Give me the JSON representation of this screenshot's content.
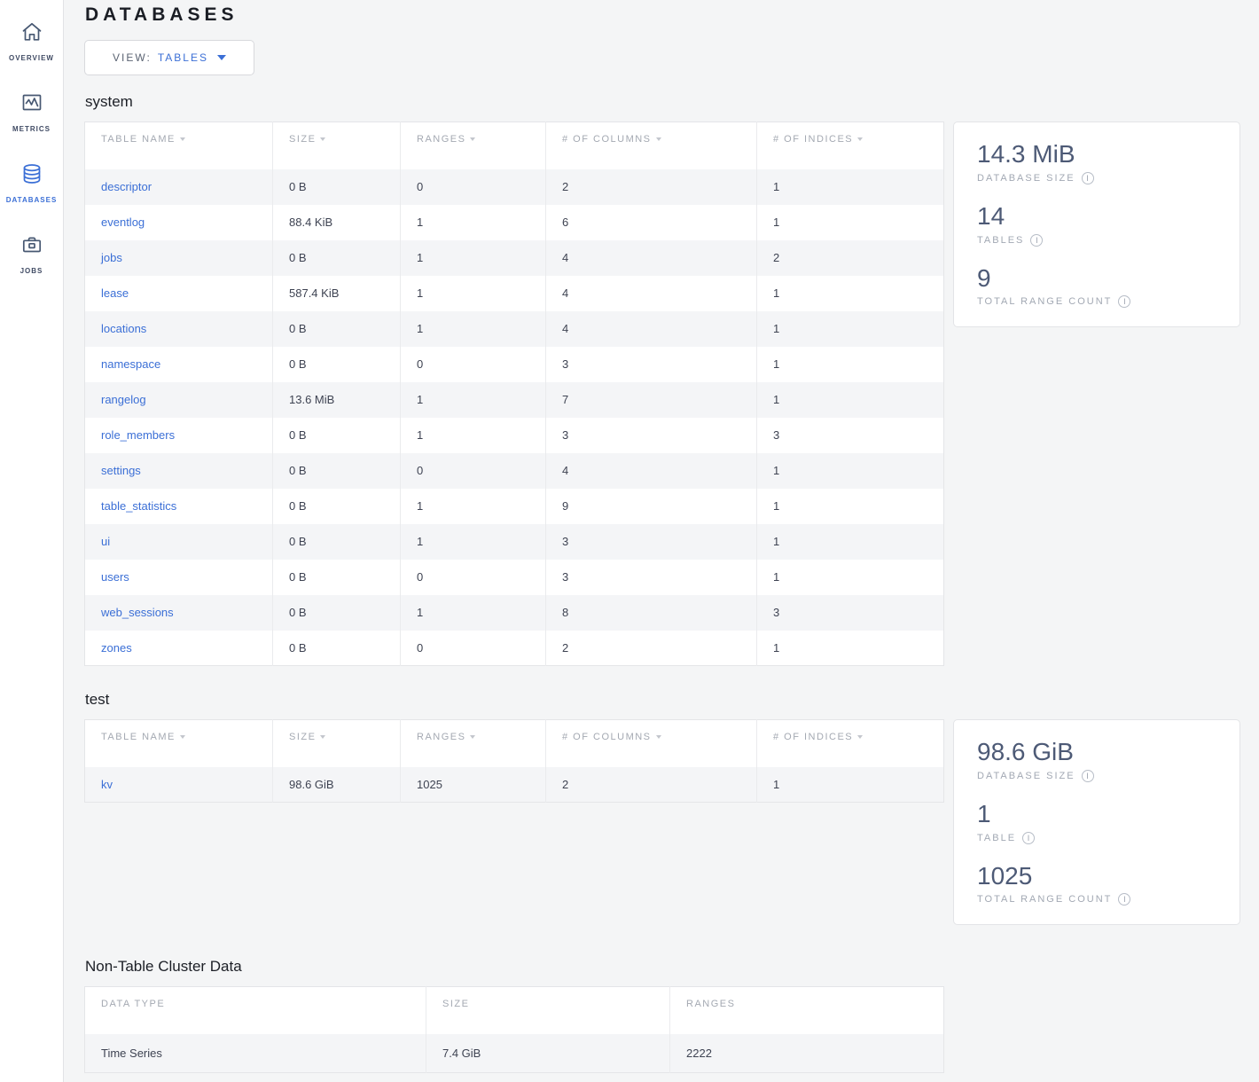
{
  "colors": {
    "accent_blue": "#3b6fd6",
    "stat_slate": "#4d5a76",
    "page_bg": "#f4f5f6"
  },
  "sidebar": {
    "items": [
      {
        "label": "OVERVIEW",
        "icon": "home-icon",
        "active": false
      },
      {
        "label": "METRICS",
        "icon": "metrics-icon",
        "active": false
      },
      {
        "label": "DATABASES",
        "icon": "database-icon",
        "active": true
      },
      {
        "label": "JOBS",
        "icon": "briefcase-icon",
        "active": false
      }
    ]
  },
  "header": {
    "title": "DATABASES"
  },
  "view_dropdown": {
    "label": "VIEW:",
    "value": "TABLES"
  },
  "databases": [
    {
      "name": "system",
      "table": {
        "columns": [
          "TABLE NAME",
          "SIZE",
          "RANGES",
          "# OF COLUMNS",
          "# OF INDICES"
        ],
        "rows": [
          [
            "descriptor",
            "0 B",
            "0",
            "2",
            "1"
          ],
          [
            "eventlog",
            "88.4 KiB",
            "1",
            "6",
            "1"
          ],
          [
            "jobs",
            "0 B",
            "1",
            "4",
            "2"
          ],
          [
            "lease",
            "587.4 KiB",
            "1",
            "4",
            "1"
          ],
          [
            "locations",
            "0 B",
            "1",
            "4",
            "1"
          ],
          [
            "namespace",
            "0 B",
            "0",
            "3",
            "1"
          ],
          [
            "rangelog",
            "13.6 MiB",
            "1",
            "7",
            "1"
          ],
          [
            "role_members",
            "0 B",
            "1",
            "3",
            "3"
          ],
          [
            "settings",
            "0 B",
            "0",
            "4",
            "1"
          ],
          [
            "table_statistics",
            "0 B",
            "1",
            "9",
            "1"
          ],
          [
            "ui",
            "0 B",
            "1",
            "3",
            "1"
          ],
          [
            "users",
            "0 B",
            "0",
            "3",
            "1"
          ],
          [
            "web_sessions",
            "0 B",
            "1",
            "8",
            "3"
          ],
          [
            "zones",
            "0 B",
            "0",
            "2",
            "1"
          ]
        ]
      },
      "summary": [
        {
          "value": "14.3 MiB",
          "label": "DATABASE SIZE"
        },
        {
          "value": "14",
          "label": "TABLES"
        },
        {
          "value": "9",
          "label": "TOTAL RANGE COUNT"
        }
      ]
    },
    {
      "name": "test",
      "table": {
        "columns": [
          "TABLE NAME",
          "SIZE",
          "RANGES",
          "# OF COLUMNS",
          "# OF INDICES"
        ],
        "rows": [
          [
            "kv",
            "98.6 GiB",
            "1025",
            "2",
            "1"
          ]
        ]
      },
      "summary": [
        {
          "value": "98.6 GiB",
          "label": "DATABASE SIZE"
        },
        {
          "value": "1",
          "label": "TABLE"
        },
        {
          "value": "1025",
          "label": "TOTAL RANGE COUNT"
        }
      ]
    }
  ],
  "non_table": {
    "heading": "Non-Table Cluster Data",
    "columns": [
      "DATA TYPE",
      "SIZE",
      "RANGES"
    ],
    "rows": [
      [
        "Time Series",
        "7.4 GiB",
        "2222"
      ]
    ]
  }
}
